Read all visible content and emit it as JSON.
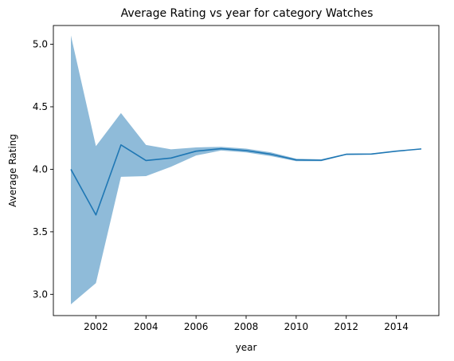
{
  "chart_data": {
    "type": "line",
    "title": "Average Rating vs year for category Watches",
    "xlabel": "year",
    "ylabel": "Average Rating",
    "xlim": [
      2000.3,
      2015.7
    ],
    "ylim": [
      2.83,
      5.15
    ],
    "xticks": [
      2002,
      2004,
      2006,
      2008,
      2010,
      2012,
      2014
    ],
    "yticks": [
      3.0,
      3.5,
      4.0,
      4.5,
      5.0
    ],
    "xtick_labels": [
      "2002",
      "2004",
      "2006",
      "2008",
      "2010",
      "2012",
      "2014"
    ],
    "ytick_labels": [
      "3.0",
      "3.5",
      "4.0",
      "4.5",
      "5.0"
    ],
    "grid": false,
    "colors": {
      "line": "#1f77b4",
      "band": "#1f77b4"
    },
    "series": [
      {
        "x": [
          2001,
          2002,
          2003,
          2004,
          2005,
          2006,
          2007,
          2008,
          2009,
          2010,
          2011,
          2012,
          2013,
          2014,
          2015
        ],
        "values": [
          4.0,
          3.635,
          4.195,
          4.07,
          4.09,
          4.145,
          4.165,
          4.15,
          4.12,
          4.075,
          4.072,
          4.12,
          4.122,
          4.145,
          4.163
        ],
        "lower": [
          2.92,
          3.09,
          3.94,
          3.945,
          4.02,
          4.11,
          4.15,
          4.135,
          4.105,
          4.065,
          4.065,
          4.115,
          4.118,
          4.142,
          4.16
        ],
        "upper": [
          5.07,
          4.185,
          4.45,
          4.195,
          4.16,
          4.175,
          4.18,
          4.165,
          4.135,
          4.085,
          4.08,
          4.125,
          4.126,
          4.148,
          4.166
        ]
      }
    ]
  }
}
